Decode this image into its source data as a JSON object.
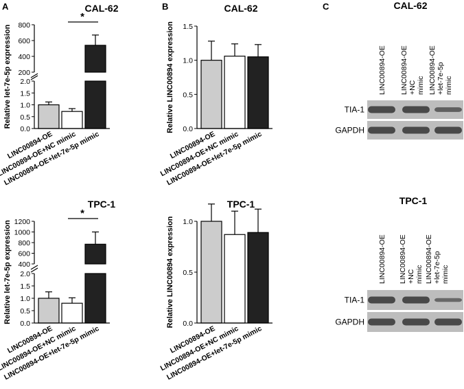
{
  "panels": [
    {
      "letter": "A",
      "title": "CAL-62"
    },
    {
      "letter": "B",
      "title": "CAL-62"
    },
    {
      "letter": "C",
      "title": "CAL-62"
    },
    {
      "letter": "",
      "title": "TPC-1"
    },
    {
      "letter": "",
      "title": "TPC-1"
    },
    {
      "letter": "",
      "title": "TPC-1"
    }
  ],
  "colors": {
    "bar1": "#cccccc",
    "bar2": "#ffffff",
    "bar3": "#222222",
    "stroke": "#000000"
  },
  "chart_data": [
    {
      "type": "bar",
      "title": "CAL-62",
      "ylabel": "Relative let-7e-5p expression",
      "categories": [
        "LINC00894-OE",
        "LINC00894-OE+NC mimic",
        "LINC00894-OE+let-7e-5p mimic"
      ],
      "values": [
        1.0,
        0.72,
        540
      ],
      "errors": [
        0.12,
        0.12,
        130
      ],
      "axis_break": true,
      "lower_ylim": [
        0,
        2.0
      ],
      "lower_ticks": [
        "0.0",
        "0.5",
        "1.0",
        "1.5",
        "2.0"
      ],
      "upper_ylim": [
        200,
        800
      ],
      "upper_ticks": [
        "200",
        "400",
        "600",
        "800"
      ],
      "significance": "*"
    },
    {
      "type": "bar",
      "title": "CAL-62",
      "ylabel": "Relative LINC00894 expression",
      "categories": [
        "LINC00894-OE",
        "LINC00894-OE+NC mimic",
        "LINC00894-OE+let-7e-5p mimic"
      ],
      "values": [
        1.0,
        1.06,
        1.05
      ],
      "errors": [
        0.28,
        0.18,
        0.18
      ],
      "axis_break": false,
      "ylim": [
        0,
        1.5
      ],
      "ticks": [
        "0.0",
        "0.5",
        "1.0",
        "1.5"
      ]
    },
    {
      "type": "bar",
      "title": "TPC-1",
      "ylabel": "Relative let-7e-5p expression",
      "categories": [
        "LINC00894-OE",
        "LINC00894-OE+NC mimic",
        "LINC00894-OE+let-7e-5p mimic"
      ],
      "values": [
        1.0,
        0.8,
        770
      ],
      "errors": [
        0.26,
        0.22,
        230
      ],
      "axis_break": true,
      "lower_ylim": [
        0,
        2.0
      ],
      "lower_ticks": [
        "0.0",
        "0.5",
        "1.0",
        "1.5",
        "2.0"
      ],
      "upper_ylim": [
        400,
        1200
      ],
      "upper_ticks": [
        "400",
        "600",
        "800",
        "1000",
        "1200"
      ],
      "significance": "*"
    },
    {
      "type": "bar",
      "title": "TPC-1",
      "ylabel": "Relative LINC00894 expression",
      "categories": [
        "LINC00894-OE",
        "LINC00894-OE+NC mimic",
        "LINC00894-OE+let-7e-5p mimic"
      ],
      "values": [
        1.0,
        0.87,
        0.89
      ],
      "errors": [
        0.17,
        0.23,
        0.23
      ],
      "axis_break": false,
      "ylim": [
        0,
        1.0
      ],
      "ticks": [
        "0.0",
        "0.5",
        "1.0"
      ]
    }
  ],
  "blots": [
    {
      "title": "CAL-62",
      "lanes": [
        "LINC00894-OE",
        "LINC00894-OE +NC mimic",
        "LINC00894-OE +let-7e-5p mimic"
      ],
      "rows": [
        {
          "label": "TIA-1",
          "intensity": [
            1.0,
            1.0,
            0.6
          ]
        },
        {
          "label": "GAPDH",
          "intensity": [
            1.0,
            1.0,
            1.0
          ]
        }
      ]
    },
    {
      "title": "TPC-1",
      "lanes": [
        "LINC00894-OE",
        "LINC00894-OE +NC mimic",
        "LINC00894-OE +let-7e-5p mimic"
      ],
      "rows": [
        {
          "label": "TIA-1",
          "intensity": [
            1.0,
            1.0,
            0.45
          ]
        },
        {
          "label": "GAPDH",
          "intensity": [
            1.0,
            1.0,
            1.0
          ]
        }
      ]
    }
  ]
}
